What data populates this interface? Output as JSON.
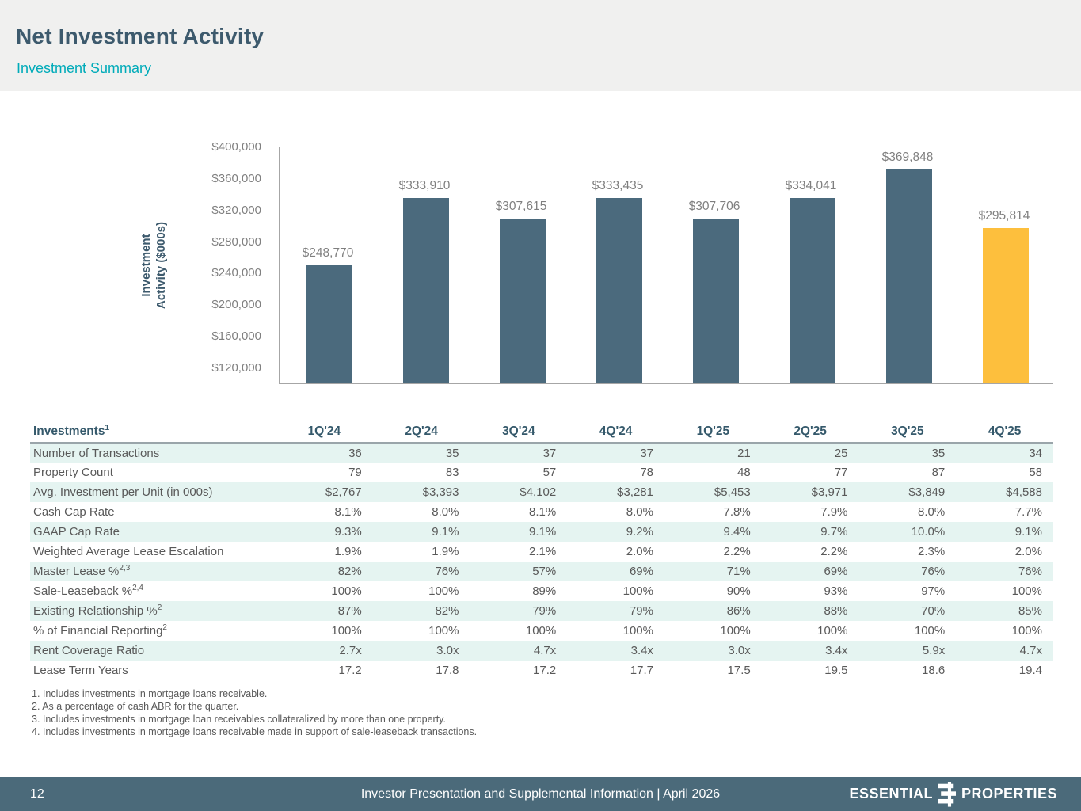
{
  "header": {
    "title": "Net Investment Activity",
    "subtitle": "Investment Summary"
  },
  "chart_data": {
    "type": "bar",
    "categories": [
      "1Q'24",
      "2Q'24",
      "3Q'24",
      "4Q'24",
      "1Q'25",
      "2Q'25",
      "3Q'25",
      "4Q'25"
    ],
    "values": [
      248770,
      333910,
      307615,
      333435,
      307706,
      334041,
      369848,
      295814
    ],
    "value_labels": [
      "$248,770",
      "$333,910",
      "$307,615",
      "$333,435",
      "$307,706",
      "$334,041",
      "$369,848",
      "$295,814"
    ],
    "title": "",
    "xlabel": "",
    "ylabel": "Investment\nActivity ($000s)",
    "ylim": [
      100000,
      400000
    ],
    "yticks": [
      400000,
      360000,
      320000,
      280000,
      240000,
      200000,
      160000,
      120000
    ],
    "ytick_labels": [
      "$400,000",
      "$360,000",
      "$320,000",
      "$280,000",
      "$240,000",
      "$200,000",
      "$160,000",
      "$120,000"
    ],
    "grid": false,
    "legend": "none",
    "bar_color": "#4b6a7d",
    "highlight_color": "#fdbf3d",
    "highlight_index": 7
  },
  "table": {
    "corner_label": "Investments",
    "corner_superscript": "1",
    "columns": [
      "1Q'24",
      "2Q'24",
      "3Q'24",
      "4Q'24",
      "1Q'25",
      "2Q'25",
      "3Q'25",
      "4Q'25"
    ],
    "rows": [
      {
        "label": "Number of Transactions",
        "sup": "",
        "values": [
          "36",
          "35",
          "37",
          "37",
          "21",
          "25",
          "35",
          "34"
        ]
      },
      {
        "label": "Property Count",
        "sup": "",
        "values": [
          "79",
          "83",
          "57",
          "78",
          "48",
          "77",
          "87",
          "58"
        ]
      },
      {
        "label": "Avg. Investment per Unit (in 000s)",
        "sup": "",
        "values": [
          "$2,767",
          "$3,393",
          "$4,102",
          "$3,281",
          "$5,453",
          "$3,971",
          "$3,849",
          "$4,588"
        ]
      },
      {
        "label": "Cash Cap Rate",
        "sup": "",
        "values": [
          "8.1%",
          "8.0%",
          "8.1%",
          "8.0%",
          "7.8%",
          "7.9%",
          "8.0%",
          "7.7%"
        ]
      },
      {
        "label": "GAAP Cap Rate",
        "sup": "",
        "values": [
          "9.3%",
          "9.1%",
          "9.1%",
          "9.2%",
          "9.4%",
          "9.7%",
          "10.0%",
          "9.1%"
        ]
      },
      {
        "label": "Weighted Average Lease Escalation",
        "sup": "",
        "values": [
          "1.9%",
          "1.9%",
          "2.1%",
          "2.0%",
          "2.2%",
          "2.2%",
          "2.3%",
          "2.0%"
        ]
      },
      {
        "label": "Master Lease %",
        "sup": "2,3",
        "values": [
          "82%",
          "76%",
          "57%",
          "69%",
          "71%",
          "69%",
          "76%",
          "76%"
        ]
      },
      {
        "label": "Sale-Leaseback %",
        "sup": "2,4",
        "values": [
          "100%",
          "100%",
          "89%",
          "100%",
          "90%",
          "93%",
          "97%",
          "100%"
        ]
      },
      {
        "label": "Existing Relationship %",
        "sup": "2",
        "values": [
          "87%",
          "82%",
          "79%",
          "79%",
          "86%",
          "88%",
          "70%",
          "85%"
        ]
      },
      {
        "label": "% of Financial Reporting",
        "sup": "2",
        "values": [
          "100%",
          "100%",
          "100%",
          "100%",
          "100%",
          "100%",
          "100%",
          "100%"
        ]
      },
      {
        "label": "Rent Coverage Ratio",
        "sup": "",
        "values": [
          "2.7x",
          "3.0x",
          "4.7x",
          "3.4x",
          "3.0x",
          "3.4x",
          "5.9x",
          "4.7x"
        ]
      },
      {
        "label": "Lease Term Years",
        "sup": "",
        "values": [
          "17.2",
          "17.8",
          "17.2",
          "17.7",
          "17.5",
          "19.5",
          "18.6",
          "19.4"
        ]
      }
    ]
  },
  "footnotes": [
    "1. Includes investments in mortgage loans receivable.",
    "2. As a percentage of cash ABR for the quarter.",
    "3. Includes investments in mortgage loan receivables collateralized by more than one property.",
    "4. Includes investments in mortgage loans receivable made in support of sale-leaseback transactions."
  ],
  "footer": {
    "page_number": "12",
    "center_text": "Investor Presentation and Supplemental Information |  April 2026",
    "logo_left": "ESSENTIAL",
    "logo_right": "PROPERTIES"
  },
  "colors": {
    "header_band": "#f0f0ef",
    "title": "#3d5a6d",
    "subtitle": "#00abb9",
    "bar": "#4b6a7d",
    "bar_highlight": "#fdbf3d",
    "axis_line": "#a6a6a6",
    "axis_text": "#7f7f7f",
    "table_header_text": "#35596b",
    "table_stripe": "#e5f4f1",
    "body_text": "#595959",
    "footer_bg": "#4b6a7a"
  }
}
